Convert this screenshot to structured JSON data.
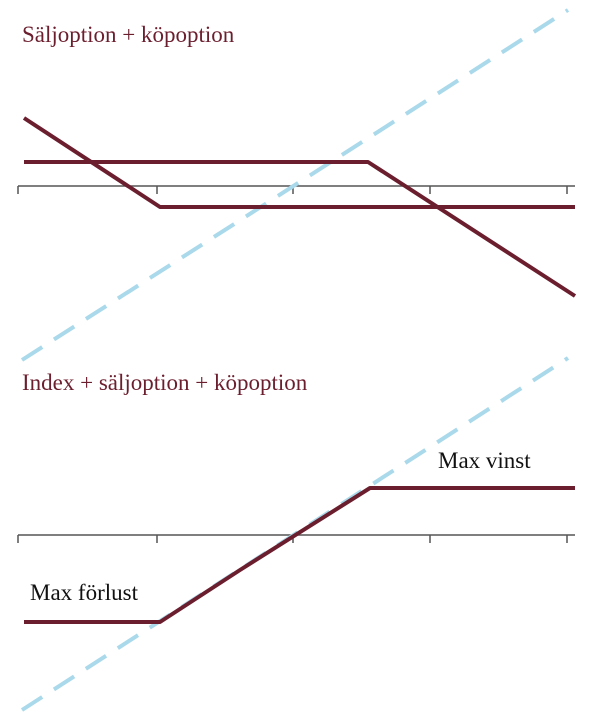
{
  "charts": [
    {
      "title": "Säljoption + köpoption"
    },
    {
      "title": "Index + säljoption + köpoption",
      "labels": [
        "Max vinst",
        "Max förlust"
      ]
    }
  ]
}
